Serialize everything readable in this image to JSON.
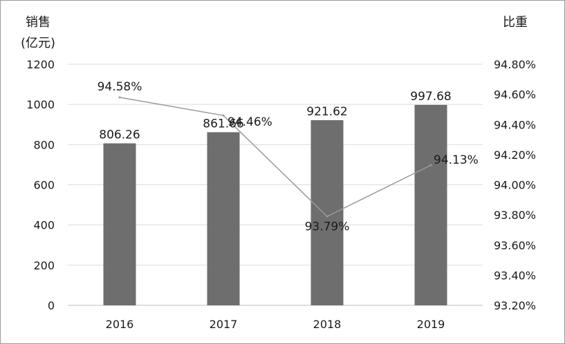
{
  "chart_data": {
    "type": "bar",
    "categories": [
      "2016",
      "2017",
      "2018",
      "2019"
    ],
    "series": [
      {
        "kind": "bar",
        "axis": "left",
        "values": [
          806.26,
          861.66,
          921.62,
          997.68
        ],
        "labels": [
          "806.26",
          "861.66",
          "921.62",
          "997.68"
        ],
        "color": "#6e6e6e"
      },
      {
        "kind": "line",
        "axis": "right",
        "values": [
          94.58,
          94.46,
          93.79,
          94.13
        ],
        "labels": [
          "94.58%",
          "94.46%",
          "93.79%",
          "94.13%"
        ],
        "color": "#9a9a9a"
      }
    ],
    "ylabel_lines": [
      "销售",
      "(亿元)"
    ],
    "y2label": "比重",
    "ylim": [
      0,
      1200
    ],
    "y_ticks": [
      "0",
      "200",
      "400",
      "600",
      "800",
      "1000",
      "1200"
    ],
    "y2lim": [
      93.2,
      94.8
    ],
    "y2_ticks": [
      "93.20%",
      "93.40%",
      "93.60%",
      "93.80%",
      "94.00%",
      "94.20%",
      "94.40%",
      "94.60%",
      "94.80%"
    ],
    "grid": true,
    "legend": "none"
  }
}
